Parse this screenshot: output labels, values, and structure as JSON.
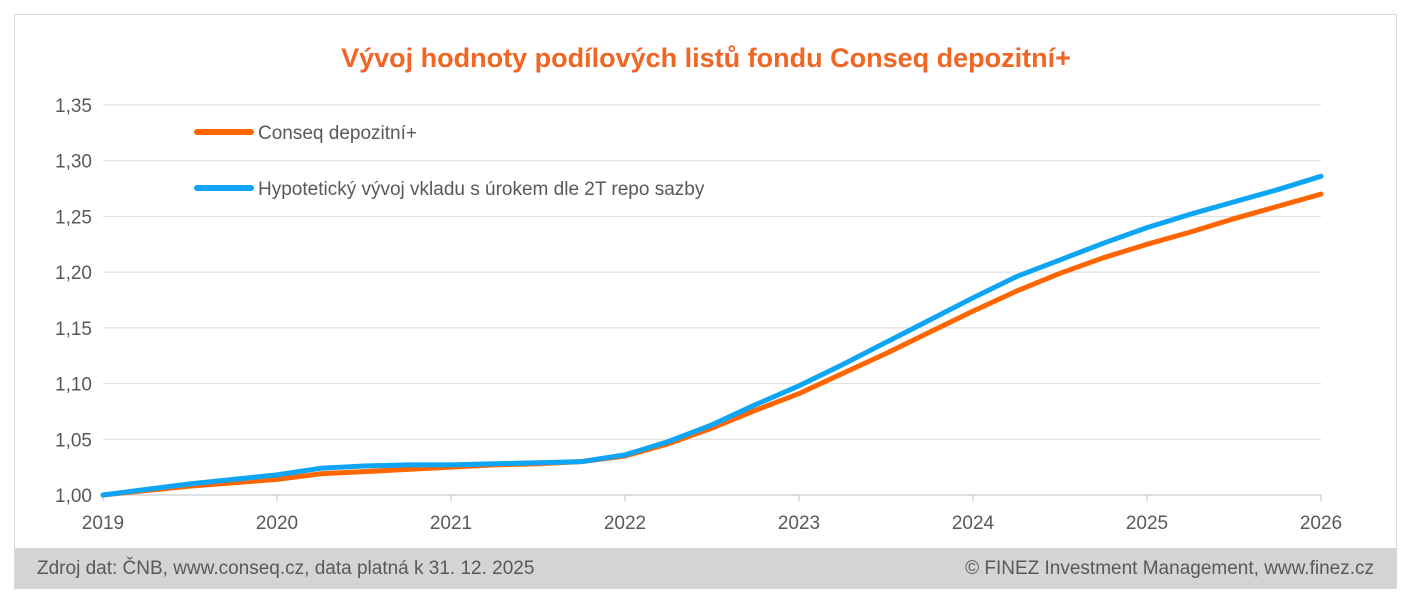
{
  "chart_data": {
    "type": "line",
    "title": "Vývoj hodnoty podílových listů fondu Conseq depozitní+",
    "xlabel": "",
    "ylabel": "",
    "xlim": [
      2019,
      2026
    ],
    "ylim": [
      1.0,
      1.35
    ],
    "x_ticks": [
      "2019",
      "2020",
      "2021",
      "2022",
      "2023",
      "2024",
      "2025",
      "2026"
    ],
    "y_ticks": [
      "1,00",
      "1,05",
      "1,10",
      "1,15",
      "1,20",
      "1,25",
      "1,30",
      "1,35"
    ],
    "grid": "horizontal",
    "legend_position": "top-left",
    "series": [
      {
        "name": "Conseq depozitní+",
        "color": "#ff6600",
        "x": [
          2019.0,
          2019.25,
          2019.5,
          2019.75,
          2020.0,
          2020.25,
          2020.5,
          2020.75,
          2021.0,
          2021.25,
          2021.5,
          2021.75,
          2022.0,
          2022.25,
          2022.5,
          2022.75,
          2023.0,
          2023.25,
          2023.5,
          2023.75,
          2024.0,
          2024.25,
          2024.5,
          2024.75,
          2025.0,
          2025.25,
          2025.5,
          2025.75,
          2026.0
        ],
        "values": [
          1.0,
          1.004,
          1.008,
          1.011,
          1.014,
          1.019,
          1.021,
          1.023,
          1.025,
          1.027,
          1.028,
          1.03,
          1.035,
          1.046,
          1.06,
          1.076,
          1.091,
          1.109,
          1.127,
          1.146,
          1.165,
          1.183,
          1.199,
          1.213,
          1.225,
          1.236,
          1.248,
          1.259,
          1.27
        ]
      },
      {
        "name": "Hypotetický vývoj vkladu s úrokem dle 2T repo sazby",
        "color": "#0ea5f5",
        "x": [
          2019.0,
          2019.25,
          2019.5,
          2019.75,
          2020.0,
          2020.25,
          2020.5,
          2020.75,
          2021.0,
          2021.25,
          2021.5,
          2021.75,
          2022.0,
          2022.25,
          2022.5,
          2022.75,
          2023.0,
          2023.25,
          2023.5,
          2023.75,
          2024.0,
          2024.25,
          2024.5,
          2024.75,
          2025.0,
          2025.25,
          2025.5,
          2025.75,
          2026.0
        ],
        "values": [
          1.0,
          1.005,
          1.01,
          1.014,
          1.018,
          1.024,
          1.026,
          1.027,
          1.027,
          1.028,
          1.029,
          1.03,
          1.036,
          1.048,
          1.063,
          1.081,
          1.098,
          1.117,
          1.137,
          1.157,
          1.177,
          1.196,
          1.211,
          1.226,
          1.24,
          1.252,
          1.263,
          1.274,
          1.286
        ]
      }
    ]
  },
  "footer": {
    "source": "Zdroj dat: ČNB, www.conseq.cz, data platná k 31. 12. 2025",
    "copyright": "© FINEZ Investment Management, www.finez.cz"
  }
}
